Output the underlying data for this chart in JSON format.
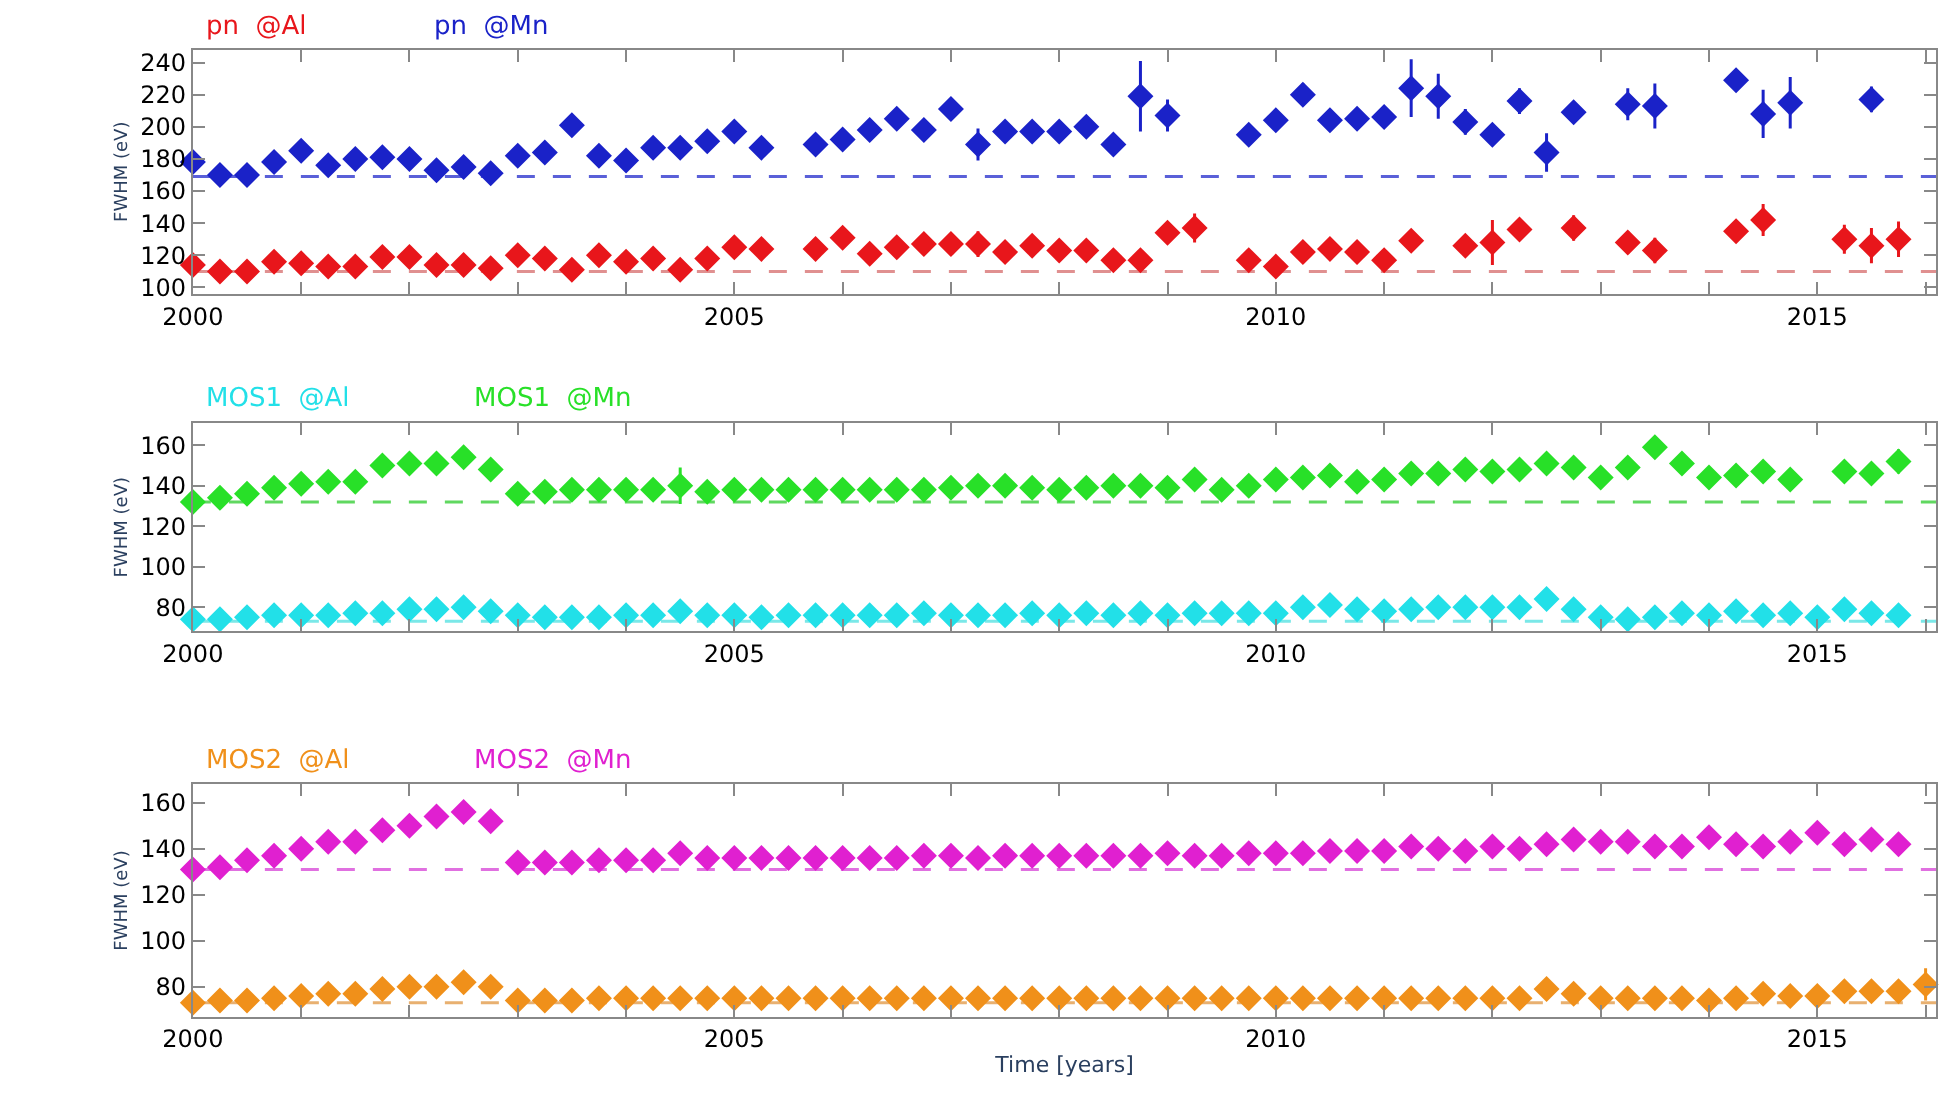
{
  "chart_data": [
    {
      "type": "scatter",
      "ylabel": "FWHM (eV)",
      "marker": "diamond",
      "xlim": [
        2000,
        2016.1
      ],
      "ylim": [
        96,
        248
      ],
      "xticks": [
        2000,
        {
          "value": 2001,
          "label": null
        },
        {
          "value": 2002,
          "label": null
        },
        {
          "value": 2003,
          "label": null
        },
        {
          "value": 2004,
          "label": null
        },
        2005,
        {
          "value": 2006,
          "label": null
        },
        {
          "value": 2007,
          "label": null
        },
        {
          "value": 2008,
          "label": null
        },
        {
          "value": 2009,
          "label": null
        },
        2010,
        {
          "value": 2011,
          "label": null
        },
        {
          "value": 2012,
          "label": null
        },
        {
          "value": 2013,
          "label": null
        },
        {
          "value": 2014,
          "label": null
        },
        2015,
        {
          "value": 2016,
          "label": null
        }
      ],
      "yticks": [
        100,
        120,
        140,
        160,
        180,
        200,
        220,
        240
      ],
      "x": [
        2000.0,
        2000.25,
        2000.5,
        2000.75,
        2001.0,
        2001.25,
        2001.5,
        2001.75,
        2002.0,
        2002.25,
        2002.5,
        2002.75,
        2003.0,
        2003.25,
        2003.5,
        2003.75,
        2004.0,
        2004.25,
        2004.5,
        2004.75,
        2005.0,
        2005.25,
        2005.5,
        2005.75,
        2006.0,
        2006.25,
        2006.5,
        2006.75,
        2007.0,
        2007.25,
        2007.5,
        2007.75,
        2008.0,
        2008.25,
        2008.5,
        2008.75,
        2009.0,
        2009.25,
        2009.5,
        2009.75,
        2010.0,
        2010.25,
        2010.5,
        2010.75,
        2011.0,
        2011.25,
        2011.5,
        2011.75,
        2012.0,
        2012.25,
        2012.5,
        2012.75,
        2013.0,
        2013.25,
        2013.5,
        2013.75,
        2014.0,
        2014.25,
        2014.5,
        2014.75,
        2015.0,
        2015.25,
        2015.5,
        2015.75
      ],
      "series": [
        {
          "name": "pn  @Al",
          "color": "#e8161b",
          "values": [
            114,
            110,
            110,
            116,
            115,
            113,
            113,
            119,
            119,
            114,
            114,
            112,
            120,
            118,
            111,
            120,
            116,
            118,
            111,
            118,
            125,
            124,
            null,
            124,
            131,
            121,
            125,
            127,
            127,
            127,
            122,
            126,
            123,
            123,
            117,
            117,
            134,
            137,
            null,
            117,
            113,
            122,
            124,
            122,
            117,
            129,
            null,
            126,
            128,
            136,
            null,
            137,
            null,
            128,
            123,
            null,
            null,
            135,
            142,
            null,
            null,
            130,
            126,
            130
          ],
          "errors": [
            3,
            3,
            3,
            3,
            3,
            3,
            3,
            3,
            3,
            3,
            3,
            3,
            3,
            3,
            3,
            3,
            3,
            3,
            3,
            3,
            3,
            3,
            null,
            3,
            3,
            3,
            3,
            3,
            3,
            8,
            3,
            3,
            3,
            3,
            3,
            3,
            6,
            9,
            null,
            3,
            3,
            3,
            3,
            3,
            3,
            6,
            null,
            6,
            14,
            6,
            null,
            8,
            null,
            7,
            8,
            null,
            null,
            6,
            10,
            null,
            null,
            9,
            11,
            11
          ]
        },
        {
          "name": "pn  @Mn",
          "color": "#1a22c8",
          "values": [
            178,
            170,
            170,
            178,
            185,
            176,
            180,
            181,
            180,
            173,
            175,
            171,
            182,
            184,
            201,
            182,
            179,
            187,
            187,
            191,
            197,
            187,
            null,
            189,
            192,
            198,
            205,
            198,
            211,
            189,
            197,
            197,
            197,
            200,
            189,
            219,
            207,
            null,
            null,
            195,
            204,
            220,
            204,
            205,
            206,
            224,
            219,
            203,
            195,
            216,
            184,
            209,
            null,
            214,
            213,
            null,
            null,
            229,
            208,
            215,
            null,
            null,
            217,
            null
          ],
          "errors": [
            3,
            3,
            3,
            3,
            3,
            3,
            3,
            3,
            3,
            3,
            3,
            3,
            3,
            3,
            6,
            3,
            3,
            3,
            3,
            3,
            6,
            3,
            null,
            3,
            3,
            3,
            5,
            3,
            5,
            10,
            3,
            3,
            3,
            3,
            3,
            22,
            10,
            null,
            null,
            5,
            6,
            7,
            3,
            3,
            3,
            18,
            14,
            8,
            3,
            8,
            12,
            5,
            null,
            10,
            14,
            null,
            null,
            6,
            15,
            16,
            null,
            null,
            8,
            null
          ]
        }
      ],
      "ref_lines": [
        {
          "axis": "y",
          "value": 110,
          "color": "#e09090",
          "line_style": "dashed"
        },
        {
          "axis": "y",
          "value": 169,
          "color": "#5a60d8",
          "line_style": "dashed"
        }
      ]
    },
    {
      "type": "scatter",
      "ylabel": "FWHM (eV)",
      "marker": "diamond",
      "xlim": [
        2000,
        2016.1
      ],
      "ylim": [
        68,
        171
      ],
      "xticks": [
        2000,
        {
          "value": 2001,
          "label": null
        },
        {
          "value": 2002,
          "label": null
        },
        {
          "value": 2003,
          "label": null
        },
        {
          "value": 2004,
          "label": null
        },
        2005,
        {
          "value": 2006,
          "label": null
        },
        {
          "value": 2007,
          "label": null
        },
        {
          "value": 2008,
          "label": null
        },
        {
          "value": 2009,
          "label": null
        },
        2010,
        {
          "value": 2011,
          "label": null
        },
        {
          "value": 2012,
          "label": null
        },
        {
          "value": 2013,
          "label": null
        },
        {
          "value": 2014,
          "label": null
        },
        2015,
        {
          "value": 2016,
          "label": null
        }
      ],
      "yticks": [
        80,
        100,
        120,
        140,
        160
      ],
      "x": [
        2000.0,
        2000.25,
        2000.5,
        2000.75,
        2001.0,
        2001.25,
        2001.5,
        2001.75,
        2002.0,
        2002.25,
        2002.5,
        2002.75,
        2003.0,
        2003.25,
        2003.5,
        2003.75,
        2004.0,
        2004.25,
        2004.5,
        2004.75,
        2005.0,
        2005.25,
        2005.5,
        2005.75,
        2006.0,
        2006.25,
        2006.5,
        2006.75,
        2007.0,
        2007.25,
        2007.5,
        2007.75,
        2008.0,
        2008.25,
        2008.5,
        2008.75,
        2009.0,
        2009.25,
        2009.5,
        2009.75,
        2010.0,
        2010.25,
        2010.5,
        2010.75,
        2011.0,
        2011.25,
        2011.5,
        2011.75,
        2012.0,
        2012.25,
        2012.5,
        2012.75,
        2013.0,
        2013.25,
        2013.5,
        2013.75,
        2014.0,
        2014.25,
        2014.5,
        2014.75,
        2015.0,
        2015.25,
        2015.5,
        2015.75
      ],
      "series": [
        {
          "name": "MOS1  @Al",
          "color": "#22e0e8",
          "values": [
            74,
            74,
            75,
            76,
            76,
            76,
            77,
            77,
            79,
            79,
            80,
            78,
            76,
            75,
            75,
            75,
            76,
            76,
            78,
            76,
            76,
            75,
            76,
            76,
            76,
            76,
            76,
            77,
            76,
            76,
            76,
            77,
            76,
            77,
            76,
            77,
            76,
            77,
            77,
            77,
            77,
            80,
            81,
            79,
            78,
            79,
            80,
            80,
            80,
            80,
            84,
            79,
            75,
            74,
            75,
            77,
            76,
            78,
            76,
            77,
            75,
            79,
            77,
            76
          ],
          "errors": [
            1,
            1,
            1,
            1,
            1,
            1,
            1,
            1,
            1,
            1,
            1,
            1,
            1,
            1,
            1,
            1,
            1,
            1,
            5,
            1,
            1,
            1,
            1,
            1,
            1,
            1,
            1,
            1,
            1,
            1,
            1,
            1,
            1,
            1,
            1,
            1,
            1,
            1,
            1,
            1,
            1,
            1,
            1,
            1,
            1,
            1,
            1,
            1,
            1,
            1,
            1,
            1,
            1,
            1,
            1,
            1,
            1,
            1,
            1,
            1,
            1,
            1,
            1,
            1
          ]
        },
        {
          "name": "MOS1  @Mn",
          "color": "#28e028",
          "values": [
            132,
            134,
            136,
            139,
            141,
            142,
            142,
            150,
            151,
            151,
            154,
            148,
            136,
            137,
            138,
            138,
            138,
            138,
            140,
            137,
            138,
            138,
            138,
            138,
            138,
            138,
            138,
            138,
            139,
            140,
            140,
            139,
            138,
            139,
            140,
            140,
            139,
            143,
            138,
            140,
            143,
            144,
            145,
            142,
            143,
            146,
            146,
            148,
            147,
            148,
            151,
            149,
            144,
            149,
            159,
            151,
            144,
            145,
            147,
            143,
            null,
            147,
            146,
            152
          ],
          "errors": [
            1,
            1,
            1,
            1,
            1,
            1,
            1,
            1,
            1,
            1,
            1,
            1,
            1,
            1,
            1,
            1,
            1,
            1,
            9,
            1,
            1,
            1,
            1,
            1,
            1,
            1,
            1,
            1,
            1,
            1,
            1,
            1,
            1,
            1,
            1,
            1,
            1,
            1,
            1,
            1,
            1,
            1,
            1,
            1,
            1,
            1,
            1,
            1,
            1,
            1,
            4,
            3,
            3,
            3,
            4,
            4,
            4,
            4,
            5,
            4,
            null,
            4,
            5,
            6
          ]
        }
      ],
      "ref_lines": [
        {
          "axis": "y",
          "value": 73,
          "color": "#7ae8e8",
          "line_style": "dashed"
        },
        {
          "axis": "y",
          "value": 132,
          "color": "#60d860",
          "line_style": "dashed"
        }
      ]
    },
    {
      "type": "scatter",
      "xlabel": "Time [years]",
      "ylabel": "FWHM (eV)",
      "marker": "diamond",
      "xlim": [
        2000,
        2016.1
      ],
      "ylim": [
        67,
        168
      ],
      "xticks": [
        2000,
        {
          "value": 2001,
          "label": null
        },
        {
          "value": 2002,
          "label": null
        },
        {
          "value": 2003,
          "label": null
        },
        {
          "value": 2004,
          "label": null
        },
        2005,
        {
          "value": 2006,
          "label": null
        },
        {
          "value": 2007,
          "label": null
        },
        {
          "value": 2008,
          "label": null
        },
        {
          "value": 2009,
          "label": null
        },
        2010,
        {
          "value": 2011,
          "label": null
        },
        {
          "value": 2012,
          "label": null
        },
        {
          "value": 2013,
          "label": null
        },
        {
          "value": 2014,
          "label": null
        },
        2015,
        {
          "value": 2016,
          "label": null
        }
      ],
      "yticks": [
        80,
        100,
        120,
        140,
        160
      ],
      "x": [
        2000.0,
        2000.25,
        2000.5,
        2000.75,
        2001.0,
        2001.25,
        2001.5,
        2001.75,
        2002.0,
        2002.25,
        2002.5,
        2002.75,
        2003.0,
        2003.25,
        2003.5,
        2003.75,
        2004.0,
        2004.25,
        2004.5,
        2004.75,
        2005.0,
        2005.25,
        2005.5,
        2005.75,
        2006.0,
        2006.25,
        2006.5,
        2006.75,
        2007.0,
        2007.25,
        2007.5,
        2007.75,
        2008.0,
        2008.25,
        2008.5,
        2008.75,
        2009.0,
        2009.25,
        2009.5,
        2009.75,
        2010.0,
        2010.25,
        2010.5,
        2010.75,
        2011.0,
        2011.25,
        2011.5,
        2011.75,
        2012.0,
        2012.25,
        2012.5,
        2012.75,
        2013.0,
        2013.25,
        2013.5,
        2013.75,
        2014.0,
        2014.25,
        2014.5,
        2014.75,
        2015.0,
        2015.25,
        2015.5,
        2015.75,
        2016.0
      ],
      "series": [
        {
          "name": "MOS2  @Al",
          "color": "#f0901a",
          "values": [
            73,
            74,
            74,
            75,
            76,
            77,
            77,
            79,
            80,
            80,
            82,
            80,
            74,
            74,
            74,
            75,
            75,
            75,
            75,
            75,
            75,
            75,
            75,
            75,
            75,
            75,
            75,
            75,
            75,
            75,
            75,
            75,
            75,
            75,
            75,
            75,
            75,
            75,
            75,
            75,
            75,
            75,
            75,
            75,
            75,
            75,
            75,
            75,
            75,
            75,
            79,
            77,
            75,
            75,
            75,
            75,
            74,
            75,
            77,
            76,
            76,
            78,
            78,
            78,
            81
          ],
          "errors": [
            1,
            1,
            1,
            1,
            1,
            1,
            1,
            1,
            1,
            1,
            1,
            1,
            1,
            1,
            1,
            1,
            1,
            1,
            3,
            1,
            1,
            1,
            1,
            1,
            1,
            1,
            1,
            1,
            1,
            1,
            1,
            1,
            1,
            1,
            1,
            1,
            1,
            1,
            1,
            1,
            1,
            1,
            1,
            1,
            1,
            1,
            1,
            1,
            1,
            1,
            1,
            1,
            1,
            1,
            1,
            1,
            1,
            1,
            1,
            1,
            1,
            1,
            1,
            1,
            7
          ]
        },
        {
          "name": "MOS2  @Mn",
          "color": "#e020d0",
          "values": [
            131,
            132,
            135,
            137,
            140,
            143,
            143,
            148,
            150,
            154,
            156,
            152,
            134,
            134,
            134,
            135,
            135,
            135,
            138,
            136,
            136,
            136,
            136,
            136,
            136,
            136,
            136,
            137,
            137,
            136,
            137,
            137,
            137,
            137,
            137,
            137,
            138,
            137,
            137,
            138,
            138,
            138,
            139,
            139,
            139,
            141,
            140,
            139,
            141,
            140,
            142,
            144,
            143,
            143,
            141,
            141,
            145,
            142,
            141,
            143,
            147,
            142,
            144,
            142,
            null
          ],
          "errors": [
            1,
            1,
            1,
            1,
            1,
            1,
            1,
            1,
            1,
            1,
            4,
            1,
            1,
            1,
            1,
            1,
            1,
            1,
            4,
            1,
            1,
            1,
            1,
            1,
            1,
            1,
            1,
            1,
            1,
            1,
            1,
            1,
            1,
            1,
            1,
            1,
            1,
            1,
            1,
            1,
            1,
            1,
            1,
            1,
            1,
            1,
            1,
            1,
            1,
            1,
            1,
            1,
            1,
            1,
            1,
            1,
            1,
            1,
            1,
            1,
            4,
            1,
            1,
            1,
            null
          ]
        }
      ],
      "ref_lines": [
        {
          "axis": "y",
          "value": 73,
          "color": "#e8b070",
          "line_style": "dashed"
        },
        {
          "axis": "y",
          "value": 131,
          "color": "#e070e0",
          "line_style": "dashed"
        }
      ]
    }
  ]
}
